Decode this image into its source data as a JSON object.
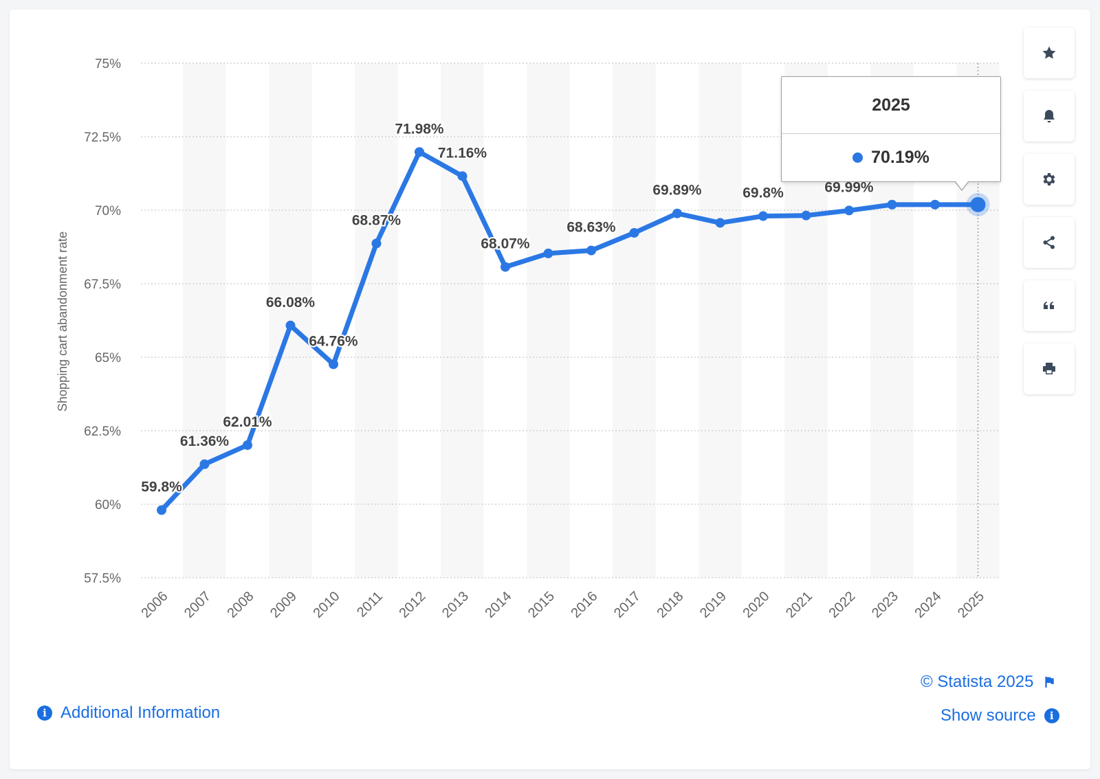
{
  "chart_data": {
    "type": "line",
    "ylabel": "Shopping cart abandonment rate",
    "xlabel": "",
    "ylim": [
      57.5,
      75
    ],
    "y_ticks": [
      "57.5%",
      "60%",
      "62.5%",
      "65%",
      "67.5%",
      "70%",
      "72.5%",
      "75%"
    ],
    "y_tick_values": [
      57.5,
      60,
      62.5,
      65,
      67.5,
      70,
      72.5,
      75
    ],
    "categories": [
      "2006",
      "2007",
      "2008",
      "2009",
      "2010",
      "2011",
      "2012",
      "2013",
      "2014",
      "2015",
      "2016",
      "2017",
      "2018",
      "2019",
      "2020",
      "2021",
      "2022",
      "2023",
      "2024",
      "2025"
    ],
    "series": [
      {
        "values": [
          59.8,
          61.36,
          62.01,
          66.08,
          64.76,
          68.87,
          71.98,
          71.16,
          68.07,
          68.53,
          68.63,
          69.23,
          69.89,
          69.57,
          69.8,
          69.82,
          69.99,
          70.19,
          70.19,
          70.19
        ],
        "labels": [
          "59.8%",
          "61.36%",
          "62.01%",
          "66.08%",
          "64.76%",
          "68.87%",
          "71.98%",
          "71.16%",
          "68.07%",
          "",
          "68.63%",
          "",
          "69.89%",
          "",
          "69.8%",
          "",
          "69.99%",
          "",
          "",
          ""
        ],
        "color": "#2b78e4"
      }
    ],
    "grid": true,
    "legend": "none",
    "highlight_index": 19
  },
  "tooltip": {
    "title": "2025",
    "value": "70.19%"
  },
  "footer": {
    "copyright": "© Statista 2025",
    "show_source": "Show source",
    "additional_info": "Additional Information"
  },
  "toolbar": {
    "icons": [
      "star-icon",
      "bell-icon",
      "gear-icon",
      "share-icon",
      "quote-icon",
      "print-icon"
    ]
  },
  "colors": {
    "line": "#2b78e4",
    "link": "#1a6ee0",
    "icon": "#3c4a5c"
  }
}
